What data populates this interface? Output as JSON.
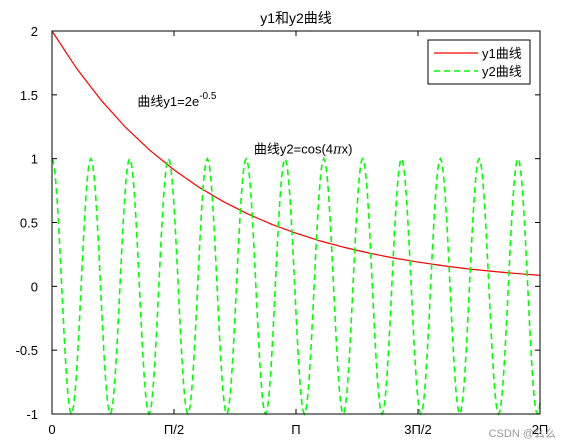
{
  "chart_data": {
    "type": "line",
    "title": "y1和y2曲线",
    "xlabel": "",
    "ylabel": "",
    "xlim": [
      0,
      6.2832
    ],
    "ylim": [
      -1,
      2
    ],
    "x_ticks": [
      {
        "value": 0,
        "label": "0"
      },
      {
        "value": 1.5708,
        "label": "Π/2"
      },
      {
        "value": 3.1416,
        "label": "Π"
      },
      {
        "value": 4.7124,
        "label": "3Π/2"
      },
      {
        "value": 6.2832,
        "label": "2Π"
      }
    ],
    "y_ticks": [
      {
        "value": 2,
        "label": "2"
      },
      {
        "value": 1.5,
        "label": "1.5"
      },
      {
        "value": 1,
        "label": "1"
      },
      {
        "value": 0.5,
        "label": "0.5"
      },
      {
        "value": 0,
        "label": "0"
      },
      {
        "value": -0.5,
        "label": "-0.5"
      },
      {
        "value": -1,
        "label": "-1"
      }
    ],
    "grid": false,
    "legend_position": "top-right",
    "series": [
      {
        "name": "y1曲线",
        "color": "#ff0000",
        "line_style": "solid",
        "x": [
          0,
          0.3142,
          0.6283,
          0.9425,
          1.2566,
          1.5708,
          1.885,
          2.1991,
          2.5133,
          2.8274,
          3.1416,
          3.4558,
          3.7699,
          4.0841,
          4.3982,
          4.7124,
          5.0265,
          5.3407,
          5.6549,
          5.969,
          6.2832
        ],
        "y": [
          2.0,
          1.709,
          1.461,
          1.248,
          1.067,
          0.912,
          0.779,
          0.666,
          0.569,
          0.486,
          0.416,
          0.355,
          0.304,
          0.26,
          0.222,
          0.19,
          0.162,
          0.138,
          0.118,
          0.101,
          0.086
        ]
      },
      {
        "name": "y2曲线",
        "color": "#00ff00",
        "line_style": "dashed",
        "x": [
          0,
          0.125,
          0.25,
          0.375,
          0.5,
          0.625,
          0.75,
          0.875,
          1.0,
          1.125,
          1.25,
          1.375,
          1.5,
          1.625,
          1.75,
          1.875,
          2.0,
          2.125,
          2.25,
          2.375,
          2.5,
          2.625,
          2.75,
          2.875,
          3.0,
          3.125,
          3.25,
          3.375,
          3.5,
          3.625,
          3.75,
          3.875,
          4.0,
          4.125,
          4.25,
          4.375,
          4.5,
          4.625,
          4.75,
          4.875,
          5.0,
          5.125,
          5.25,
          5.375,
          5.5,
          5.625,
          5.75,
          5.875,
          6.0,
          6.125,
          6.25
        ],
        "y": [
          1,
          0,
          -1,
          0,
          1,
          0,
          -1,
          0,
          1,
          0,
          -1,
          0,
          1,
          0,
          -1,
          0,
          1,
          0,
          -1,
          0,
          1,
          0,
          -1,
          0,
          1,
          0,
          -1,
          0,
          1,
          0,
          -1,
          0,
          1,
          0,
          -1,
          0,
          1,
          0,
          -1,
          0,
          1,
          0,
          -1,
          0,
          1,
          0,
          -1,
          0,
          1,
          0,
          -1
        ]
      }
    ],
    "annotations": [
      {
        "base": "曲线y1=2e",
        "sup": "-0.5",
        "x": 1.1,
        "y": 1.45
      },
      {
        "base": "曲线y2=cos(4",
        "pi": "π",
        "tail": "x)",
        "x": 2.6,
        "y": 1.08
      }
    ]
  },
  "watermark": "CSDN @么么"
}
